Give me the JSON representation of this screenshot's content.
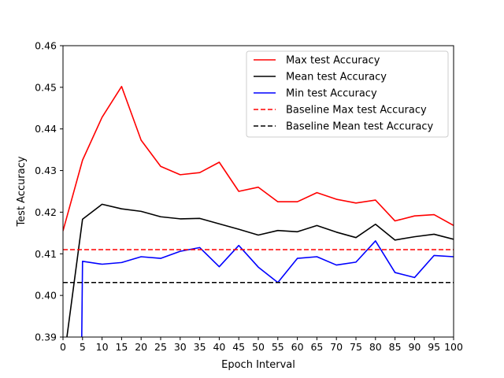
{
  "chart_data": {
    "type": "line",
    "title": "",
    "xlabel": "Epoch Interval",
    "ylabel": "Test Accuracy",
    "xlim": [
      0,
      100
    ],
    "ylim": [
      0.39,
      0.46
    ],
    "xticks": [
      0,
      5,
      10,
      15,
      20,
      25,
      30,
      35,
      40,
      45,
      50,
      55,
      60,
      65,
      70,
      75,
      80,
      85,
      90,
      95,
      100
    ],
    "yticks": [
      0.39,
      0.4,
      0.41,
      0.42,
      0.43,
      0.44,
      0.45,
      0.46
    ],
    "ytick_labels": [
      "0.39",
      "0.40",
      "0.41",
      "0.42",
      "0.43",
      "0.44",
      "0.45",
      "0.46"
    ],
    "grid": false,
    "legend_position": "top-right",
    "series": [
      {
        "name": "Max test Accuracy",
        "color": "#ff0000",
        "dash": "solid",
        "x": [
          0,
          5,
          10,
          15,
          20,
          25,
          30,
          35,
          40,
          45,
          50,
          55,
          60,
          65,
          70,
          75,
          80,
          85,
          90,
          95,
          100
        ],
        "y": [
          0.4155,
          0.4325,
          0.4428,
          0.4502,
          0.4373,
          0.431,
          0.429,
          0.4295,
          0.432,
          0.425,
          0.426,
          0.4225,
          0.4225,
          0.4247,
          0.4231,
          0.4222,
          0.4229,
          0.4179,
          0.4191,
          0.4194,
          0.4168
        ]
      },
      {
        "name": "Mean test Accuracy",
        "color": "#000000",
        "dash": "solid",
        "x": [
          1,
          5,
          10,
          15,
          20,
          25,
          30,
          35,
          40,
          45,
          50,
          55,
          60,
          65,
          70,
          75,
          80,
          85,
          90,
          95,
          100
        ],
        "y": [
          0.39,
          0.4183,
          0.4219,
          0.4208,
          0.4202,
          0.4189,
          0.4184,
          0.4185,
          0.4172,
          0.4159,
          0.4145,
          0.4156,
          0.4153,
          0.4168,
          0.4152,
          0.4139,
          0.4171,
          0.4133,
          0.4141,
          0.4147,
          0.4135
        ]
      },
      {
        "name": "Min test Accuracy",
        "color": "#0000ff",
        "dash": "solid",
        "x": [
          4.8,
          5,
          10,
          15,
          20,
          25,
          30,
          35,
          40,
          45,
          50,
          55,
          60,
          65,
          70,
          75,
          80,
          85,
          90,
          95,
          100
        ],
        "y": [
          0.39,
          0.4082,
          0.4075,
          0.4079,
          0.4093,
          0.4089,
          0.4106,
          0.4115,
          0.4069,
          0.412,
          0.4068,
          0.4031,
          0.4089,
          0.4093,
          0.4073,
          0.408,
          0.4131,
          0.4055,
          0.4043,
          0.4096,
          0.4093
        ]
      },
      {
        "name": "Baseline Max test Accuracy",
        "color": "#ff0000",
        "dash": "dashed",
        "x": [
          0,
          100
        ],
        "y": [
          0.411,
          0.411
        ]
      },
      {
        "name": "Baseline Mean test Accuracy",
        "color": "#000000",
        "dash": "dashed",
        "x": [
          0,
          100
        ],
        "y": [
          0.4031,
          0.4031
        ]
      }
    ]
  }
}
